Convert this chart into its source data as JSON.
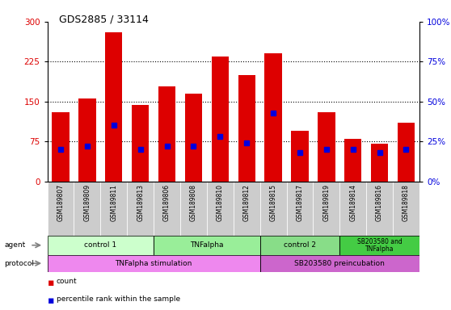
{
  "title": "GDS2885 / 33114",
  "samples": [
    "GSM189807",
    "GSM189809",
    "GSM189811",
    "GSM189813",
    "GSM189806",
    "GSM189808",
    "GSM189810",
    "GSM189812",
    "GSM189815",
    "GSM189817",
    "GSM189819",
    "GSM189814",
    "GSM189816",
    "GSM189818"
  ],
  "counts": [
    130,
    155,
    280,
    143,
    178,
    165,
    235,
    200,
    240,
    95,
    130,
    80,
    70,
    110
  ],
  "percentile_ranks": [
    20,
    22,
    35,
    20,
    22,
    22,
    28,
    24,
    43,
    18,
    20,
    20,
    18,
    20
  ],
  "ylim_left": [
    0,
    300
  ],
  "ylim_right": [
    0,
    100
  ],
  "yticks_left": [
    0,
    75,
    150,
    225,
    300
  ],
  "yticks_right": [
    0,
    25,
    50,
    75,
    100
  ],
  "bar_color": "#dd0000",
  "dot_color": "#0000dd",
  "agent_groups": [
    {
      "label": "control 1",
      "start": 0,
      "end": 4,
      "color": "#ccffcc"
    },
    {
      "label": "TNFalpha",
      "start": 4,
      "end": 8,
      "color": "#99ee99"
    },
    {
      "label": "control 2",
      "start": 8,
      "end": 11,
      "color": "#88dd88"
    },
    {
      "label": "SB203580 and\nTNFalpha",
      "start": 11,
      "end": 14,
      "color": "#44cc44"
    }
  ],
  "protocol_groups": [
    {
      "label": "TNFalpha stimulation",
      "start": 0,
      "end": 8,
      "color": "#ee88ee"
    },
    {
      "label": "SB203580 preincubation",
      "start": 8,
      "end": 14,
      "color": "#cc66cc"
    }
  ],
  "background_color": "#ffffff",
  "tick_label_bg": "#cccccc"
}
